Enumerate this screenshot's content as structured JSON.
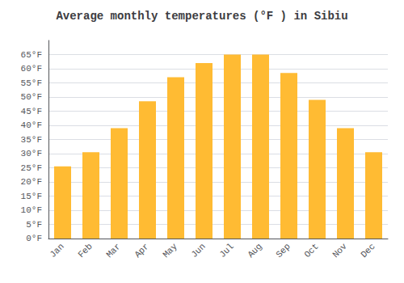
{
  "chart_data": {
    "type": "bar",
    "title": "Average monthly temperatures (°F ) in Sibiu",
    "categories": [
      "Jan",
      "Feb",
      "Mar",
      "Apr",
      "May",
      "Jun",
      "Jul",
      "Aug",
      "Sep",
      "Oct",
      "Nov",
      "Dec"
    ],
    "values": [
      25.5,
      30.5,
      39.0,
      48.5,
      57.0,
      62.0,
      65.0,
      65.0,
      58.5,
      49.0,
      39.0,
      30.5
    ],
    "color": "#FFBB33",
    "ylim": [
      0,
      70
    ],
    "yticks": [
      {
        "value": 0,
        "label": "0°F"
      },
      {
        "value": 5,
        "label": "5°F"
      },
      {
        "value": 10,
        "label": "10°F"
      },
      {
        "value": 15,
        "label": "15°F"
      },
      {
        "value": 20,
        "label": "20°F"
      },
      {
        "value": 25,
        "label": "25°F"
      },
      {
        "value": 30,
        "label": "30°F"
      },
      {
        "value": 35,
        "label": "35°F"
      },
      {
        "value": 40,
        "label": "40°F"
      },
      {
        "value": 45,
        "label": "45°F"
      },
      {
        "value": 50,
        "label": "50°F"
      },
      {
        "value": 55,
        "label": "55°F"
      },
      {
        "value": 60,
        "label": "60°F"
      },
      {
        "value": 65,
        "label": "65°F"
      }
    ],
    "grid": true
  }
}
